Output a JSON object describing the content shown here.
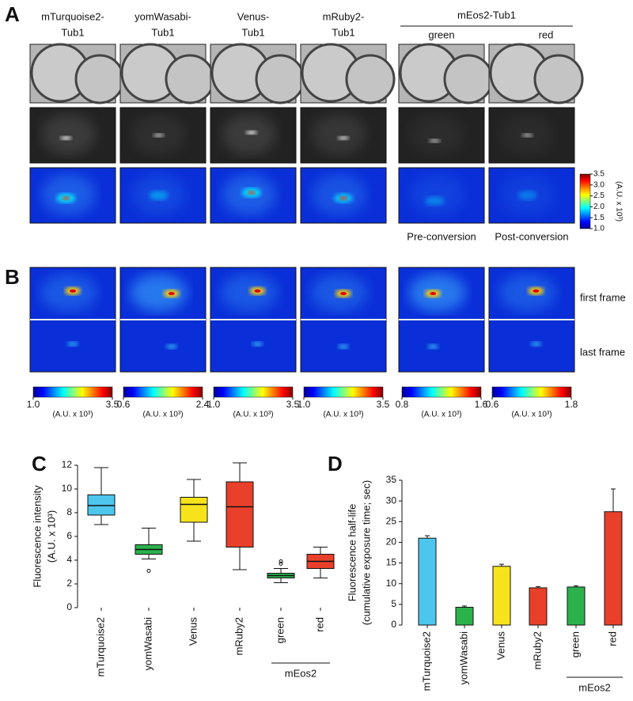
{
  "panel_labels": [
    "A",
    "B",
    "C",
    "D"
  ],
  "panel_a": {
    "columns": [
      [
        "mTurquoise2-",
        "Tub1"
      ],
      [
        "yomWasabi-",
        "Tub1"
      ],
      [
        "Venus-",
        "Tub1"
      ],
      [
        "mRuby2-",
        "Tub1"
      ]
    ],
    "group_label": "mEos2-Tub1",
    "sub_labels": [
      "green",
      "red"
    ],
    "conversion_labels": [
      "Pre-conversion",
      "Post-conversion"
    ],
    "colorbar": {
      "lim": [
        1,
        3.5
      ],
      "ticks": [
        3.5,
        {
          "value": 3,
          "label": "3.0"
        },
        2.5,
        {
          "value": 2,
          "label": "2.0"
        },
        1.5,
        {
          "value": 1,
          "label": "1.0"
        }
      ],
      "label": "(A.U. x 10³)"
    }
  },
  "panel_b": {
    "row_labels": [
      "first frame",
      "last frame"
    ],
    "unit_label": "(A.U. x 10³)",
    "colorbars": [
      {
        "lim": [
          1,
          3.5
        ],
        "ticks": [
          {
            "value": 1,
            "label": "1.0"
          },
          3.5
        ]
      },
      {
        "lim": [
          0.6,
          2.4
        ],
        "ticks": [
          0.6,
          2.4
        ]
      },
      {
        "lim": [
          1,
          3.5
        ],
        "ticks": [
          {
            "value": 1,
            "label": "1.0"
          },
          3.5
        ]
      },
      {
        "lim": [
          1,
          3.5
        ],
        "ticks": [
          {
            "value": 1,
            "label": "1.0"
          },
          3.5
        ]
      },
      {
        "lim": [
          0.8,
          1.6
        ],
        "ticks": [
          0.8,
          1.6
        ]
      },
      {
        "lim": [
          0.6,
          1.8
        ],
        "ticks": [
          0.6,
          1.8
        ]
      }
    ]
  },
  "chart_data": [
    {
      "type": "box",
      "y_label": [
        "Fluorescence intensity",
        "(A.U. x 10³)"
      ],
      "categories": [
        "mTurquoise2",
        "yomWasabi",
        "Venus",
        "mRuby2",
        "green",
        "red"
      ],
      "group_label": "mEos2",
      "colors": [
        "#4dc6ee",
        "#2bb24c",
        "#f7e31c",
        "#e8402a",
        "#2bb24c",
        "#e8402a"
      ],
      "low": [
        7.0,
        4.1,
        5.6,
        3.2,
        2.1,
        2.5
      ],
      "q1": [
        7.8,
        4.5,
        7.2,
        5.1,
        2.5,
        3.3
      ],
      "median": [
        8.6,
        4.9,
        8.7,
        8.5,
        2.7,
        3.9
      ],
      "q3": [
        9.5,
        5.3,
        9.3,
        10.6,
        2.9,
        4.5
      ],
      "high": [
        11.8,
        6.7,
        10.8,
        12.2,
        3.3,
        5.1
      ],
      "outliers": [
        [],
        [
          3.1
        ],
        [],
        [],
        [
          3.7,
          3.9
        ],
        []
      ],
      "ylim": [
        0,
        12
      ],
      "yticks": [
        0,
        2,
        4,
        6,
        8,
        10,
        12
      ]
    },
    {
      "type": "bar",
      "y_label": [
        "Fluorescence half-life",
        "(cumulative exposure time; sec)"
      ],
      "categories": [
        "mTurquoise2",
        "yomWasabi",
        "Venus",
        "mRuby2",
        "green",
        "red"
      ],
      "group_label": "mEos2",
      "colors": [
        "#4dc6ee",
        "#2bb24c",
        "#f7e31c",
        "#e8402a",
        "#2bb24c",
        "#e8402a"
      ],
      "values": [
        21.0,
        4.3,
        14.2,
        9.0,
        9.2,
        27.4
      ],
      "errors": [
        0.6,
        0.3,
        0.5,
        0.3,
        0.3,
        5.5
      ],
      "ylim": [
        0,
        35
      ],
      "yticks": [
        0,
        5,
        10,
        15,
        20,
        25,
        30,
        35
      ]
    }
  ]
}
